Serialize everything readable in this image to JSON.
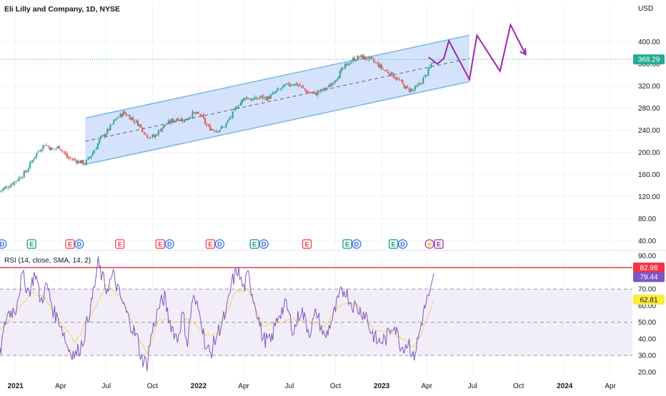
{
  "header": {
    "title": "Eli Lilly and Company, 1D, NYSE",
    "currency": "USD"
  },
  "colors": {
    "up": "#26a69a",
    "down": "#ef5350",
    "channel_fill": "#cfe0fb",
    "channel_line": "#7ab6e6",
    "projection": "#9c27b0",
    "price_badge": "#22ab94",
    "rsi_line": "#7e57c2",
    "rsi_ma": "#f7d774",
    "rsi_band": "#ede7f6",
    "rsi_level_red": "#f23645",
    "rsi_value_badge": "#7e57c2",
    "rsi_ma_badge": "#ffeb3b",
    "event_dividend": "#2962ff",
    "event_earnings_pos": "#089981",
    "event_earnings_neg": "#f23645",
    "event_split": "#9c27b0"
  },
  "chart_data": [
    {
      "type": "candlestick",
      "title": "Eli Lilly and Company, 1D, NYSE",
      "currency": "USD",
      "x_range": [
        "2020-12-01",
        "2024-05-15"
      ],
      "ylim": [
        30,
        450
      ],
      "y_ticks": [
        "400.00",
        "360.00",
        "320.00",
        "280.00",
        "240.00",
        "200.00",
        "160.00",
        "120.00",
        "80.00",
        "40.00"
      ],
      "x_ticks": [
        {
          "date": "2021-01-01",
          "label": "2021",
          "bold": true
        },
        {
          "date": "2021-04-01",
          "label": "Apr",
          "bold": false
        },
        {
          "date": "2021-07-01",
          "label": "Jul",
          "bold": false
        },
        {
          "date": "2021-10-01",
          "label": "Oct",
          "bold": false
        },
        {
          "date": "2022-01-01",
          "label": "2022",
          "bold": true
        },
        {
          "date": "2022-04-01",
          "label": "Apr",
          "bold": false
        },
        {
          "date": "2022-07-01",
          "label": "Jul",
          "bold": false
        },
        {
          "date": "2022-10-01",
          "label": "Oct",
          "bold": false
        },
        {
          "date": "2023-01-01",
          "label": "2023",
          "bold": true
        },
        {
          "date": "2023-04-01",
          "label": "Apr",
          "bold": false
        },
        {
          "date": "2023-07-01",
          "label": "Jul",
          "bold": false
        },
        {
          "date": "2023-10-01",
          "label": "Oct",
          "bold": false
        },
        {
          "date": "2024-01-01",
          "label": "2024",
          "bold": true
        },
        {
          "date": "2024-04-01",
          "label": "Apr",
          "bold": false
        }
      ],
      "last_price": 368.29,
      "last_price_label": "368.29",
      "price_path": [
        [
          "2020-12-01",
          130
        ],
        [
          "2020-12-20",
          140
        ],
        [
          "2021-01-10",
          155
        ],
        [
          "2021-01-25",
          168
        ],
        [
          "2021-02-05",
          188
        ],
        [
          "2021-02-18",
          205
        ],
        [
          "2021-03-01",
          215
        ],
        [
          "2021-03-15",
          205
        ],
        [
          "2021-03-30",
          210
        ],
        [
          "2021-04-15",
          190
        ],
        [
          "2021-05-01",
          185
        ],
        [
          "2021-05-20",
          180
        ],
        [
          "2021-06-05",
          200
        ],
        [
          "2021-06-20",
          225
        ],
        [
          "2021-07-05",
          240
        ],
        [
          "2021-07-20",
          260
        ],
        [
          "2021-08-05",
          272
        ],
        [
          "2021-08-20",
          262
        ],
        [
          "2021-09-05",
          250
        ],
        [
          "2021-09-20",
          230
        ],
        [
          "2021-10-05",
          228
        ],
        [
          "2021-10-20",
          245
        ],
        [
          "2021-11-05",
          255
        ],
        [
          "2021-11-20",
          262
        ],
        [
          "2021-12-05",
          258
        ],
        [
          "2021-12-20",
          270
        ],
        [
          "2022-01-05",
          268
        ],
        [
          "2022-01-20",
          245
        ],
        [
          "2022-02-05",
          240
        ],
        [
          "2022-02-20",
          245
        ],
        [
          "2022-03-05",
          262
        ],
        [
          "2022-03-20",
          285
        ],
        [
          "2022-04-05",
          300
        ],
        [
          "2022-04-20",
          295
        ],
        [
          "2022-05-05",
          300
        ],
        [
          "2022-05-20",
          298
        ],
        [
          "2022-06-05",
          310
        ],
        [
          "2022-06-20",
          318
        ],
        [
          "2022-07-05",
          325
        ],
        [
          "2022-07-20",
          322
        ],
        [
          "2022-08-05",
          310
        ],
        [
          "2022-08-20",
          305
        ],
        [
          "2022-09-05",
          312
        ],
        [
          "2022-09-20",
          320
        ],
        [
          "2022-10-05",
          338
        ],
        [
          "2022-10-20",
          355
        ],
        [
          "2022-11-05",
          368
        ],
        [
          "2022-11-20",
          373
        ],
        [
          "2022-12-05",
          370
        ],
        [
          "2022-12-20",
          362
        ],
        [
          "2023-01-05",
          350
        ],
        [
          "2023-01-20",
          342
        ],
        [
          "2023-02-05",
          330
        ],
        [
          "2023-02-20",
          315
        ],
        [
          "2023-03-05",
          312
        ],
        [
          "2023-03-20",
          325
        ],
        [
          "2023-04-05",
          348
        ],
        [
          "2023-04-15",
          368
        ]
      ],
      "channel": {
        "upper": [
          [
            "2021-05-20",
            262
          ],
          [
            "2023-06-25",
            412
          ]
        ],
        "lower": [
          [
            "2021-05-20",
            178
          ],
          [
            "2023-06-25",
            328
          ]
        ],
        "mid": [
          [
            "2021-05-20",
            220
          ],
          [
            "2023-06-25",
            370
          ]
        ]
      },
      "projection_path": [
        [
          "2023-04-05",
          372
        ],
        [
          "2023-04-22",
          360
        ],
        [
          "2023-05-05",
          370
        ],
        [
          "2023-05-15",
          402
        ],
        [
          "2023-06-25",
          332
        ],
        [
          "2023-07-10",
          412
        ],
        [
          "2023-08-25",
          347
        ],
        [
          "2023-09-15",
          431
        ],
        [
          "2023-10-15",
          377
        ]
      ],
      "projection_arrow_from": [
        "2023-10-01",
        397
      ],
      "events": [
        {
          "date": "2020-12-05",
          "codes": [
            "D"
          ]
        },
        {
          "date": "2021-02-02",
          "codes": [
            "E"
          ]
        },
        {
          "date": "2021-04-28",
          "codes": [
            "E",
            "D"
          ]
        },
        {
          "date": "2021-07-28",
          "codes": [
            "E"
          ]
        },
        {
          "date": "2021-10-25",
          "codes": [
            "E",
            "D"
          ]
        },
        {
          "date": "2022-02-02",
          "codes": [
            "E",
            "D"
          ]
        },
        {
          "date": "2022-05-01",
          "codes": [
            "E",
            "D"
          ]
        },
        {
          "date": "2022-08-05",
          "codes": [
            "E"
          ]
        },
        {
          "date": "2022-11-02",
          "codes": [
            "E",
            "D"
          ]
        },
        {
          "date": "2023-02-02",
          "codes": [
            "E",
            "D"
          ]
        },
        {
          "date": "2023-04-15",
          "codes": [
            "S",
            "E"
          ]
        }
      ]
    },
    {
      "type": "line",
      "title": "RSI (14, close, SMA, 14, 2)",
      "ylim": [
        18,
        92
      ],
      "y_ticks": [
        "90.00",
        "70.00",
        "60.00",
        "50.00",
        "40.00",
        "30.00",
        "20.00"
      ],
      "levels": {
        "upper": 70,
        "middle": 50,
        "lower": 30,
        "red": 82.98
      },
      "badges": {
        "red": "82.98",
        "rsi": "79.44",
        "ma": "62.81"
      },
      "rsi": [
        [
          "2020-12-01",
          30
        ],
        [
          "2020-12-15",
          55
        ],
        [
          "2021-01-01",
          58
        ],
        [
          "2021-01-15",
          78
        ],
        [
          "2021-01-28",
          68
        ],
        [
          "2021-02-10",
          80
        ],
        [
          "2021-02-20",
          62
        ],
        [
          "2021-03-05",
          72
        ],
        [
          "2021-03-20",
          55
        ],
        [
          "2021-04-01",
          50
        ],
        [
          "2021-04-15",
          35
        ],
        [
          "2021-05-01",
          30
        ],
        [
          "2021-05-15",
          38
        ],
        [
          "2021-06-01",
          60
        ],
        [
          "2021-06-15",
          85
        ],
        [
          "2021-07-01",
          70
        ],
        [
          "2021-07-15",
          78
        ],
        [
          "2021-08-01",
          63
        ],
        [
          "2021-08-15",
          52
        ],
        [
          "2021-09-01",
          40
        ],
        [
          "2021-09-10",
          28
        ],
        [
          "2021-09-20",
          25
        ],
        [
          "2021-10-01",
          45
        ],
        [
          "2021-10-15",
          60
        ],
        [
          "2021-10-25",
          65
        ],
        [
          "2021-11-05",
          50
        ],
        [
          "2021-11-20",
          40
        ],
        [
          "2021-12-01",
          55
        ],
        [
          "2021-12-10",
          38
        ],
        [
          "2021-12-20",
          65
        ],
        [
          "2022-01-05",
          55
        ],
        [
          "2022-01-15",
          35
        ],
        [
          "2022-01-25",
          31
        ],
        [
          "2022-02-10",
          45
        ],
        [
          "2022-02-25",
          55
        ],
        [
          "2022-03-10",
          75
        ],
        [
          "2022-03-20",
          82
        ],
        [
          "2022-04-01",
          70
        ],
        [
          "2022-04-10",
          78
        ],
        [
          "2022-04-25",
          60
        ],
        [
          "2022-05-10",
          40
        ],
        [
          "2022-05-25",
          38
        ],
        [
          "2022-06-10",
          55
        ],
        [
          "2022-06-25",
          60
        ],
        [
          "2022-07-10",
          45
        ],
        [
          "2022-07-25",
          58
        ],
        [
          "2022-08-10",
          44
        ],
        [
          "2022-08-25",
          56
        ],
        [
          "2022-09-10",
          40
        ],
        [
          "2022-09-25",
          52
        ],
        [
          "2022-10-10",
          66
        ],
        [
          "2022-10-20",
          70
        ],
        [
          "2022-11-01",
          62
        ],
        [
          "2022-11-15",
          58
        ],
        [
          "2022-12-01",
          55
        ],
        [
          "2022-12-10",
          45
        ],
        [
          "2022-12-25",
          38
        ],
        [
          "2023-01-10",
          40
        ],
        [
          "2023-01-25",
          50
        ],
        [
          "2023-02-10",
          35
        ],
        [
          "2023-02-25",
          38
        ],
        [
          "2023-03-05",
          28
        ],
        [
          "2023-03-15",
          40
        ],
        [
          "2023-03-25",
          55
        ],
        [
          "2023-04-05",
          66
        ],
        [
          "2023-04-15",
          79.44
        ]
      ],
      "ma": [
        [
          "2020-12-01",
          45
        ],
        [
          "2021-01-01",
          55
        ],
        [
          "2021-02-01",
          68
        ],
        [
          "2021-03-01",
          65
        ],
        [
          "2021-04-01",
          50
        ],
        [
          "2021-05-01",
          38
        ],
        [
          "2021-06-01",
          55
        ],
        [
          "2021-07-01",
          72
        ],
        [
          "2021-08-01",
          65
        ],
        [
          "2021-09-01",
          42
        ],
        [
          "2021-09-20",
          32
        ],
        [
          "2021-10-15",
          52
        ],
        [
          "2021-11-15",
          50
        ],
        [
          "2021-12-15",
          52
        ],
        [
          "2022-01-15",
          42
        ],
        [
          "2022-02-10",
          44
        ],
        [
          "2022-03-15",
          68
        ],
        [
          "2022-04-10",
          70
        ],
        [
          "2022-05-10",
          48
        ],
        [
          "2022-06-10",
          50
        ],
        [
          "2022-07-10",
          52
        ],
        [
          "2022-08-10",
          50
        ],
        [
          "2022-09-10",
          48
        ],
        [
          "2022-10-15",
          62
        ],
        [
          "2022-11-15",
          60
        ],
        [
          "2022-12-15",
          46
        ],
        [
          "2023-01-15",
          44
        ],
        [
          "2023-02-15",
          40
        ],
        [
          "2023-03-05",
          35
        ],
        [
          "2023-03-20",
          42
        ],
        [
          "2023-04-05",
          55
        ],
        [
          "2023-04-15",
          62.81
        ]
      ]
    }
  ]
}
